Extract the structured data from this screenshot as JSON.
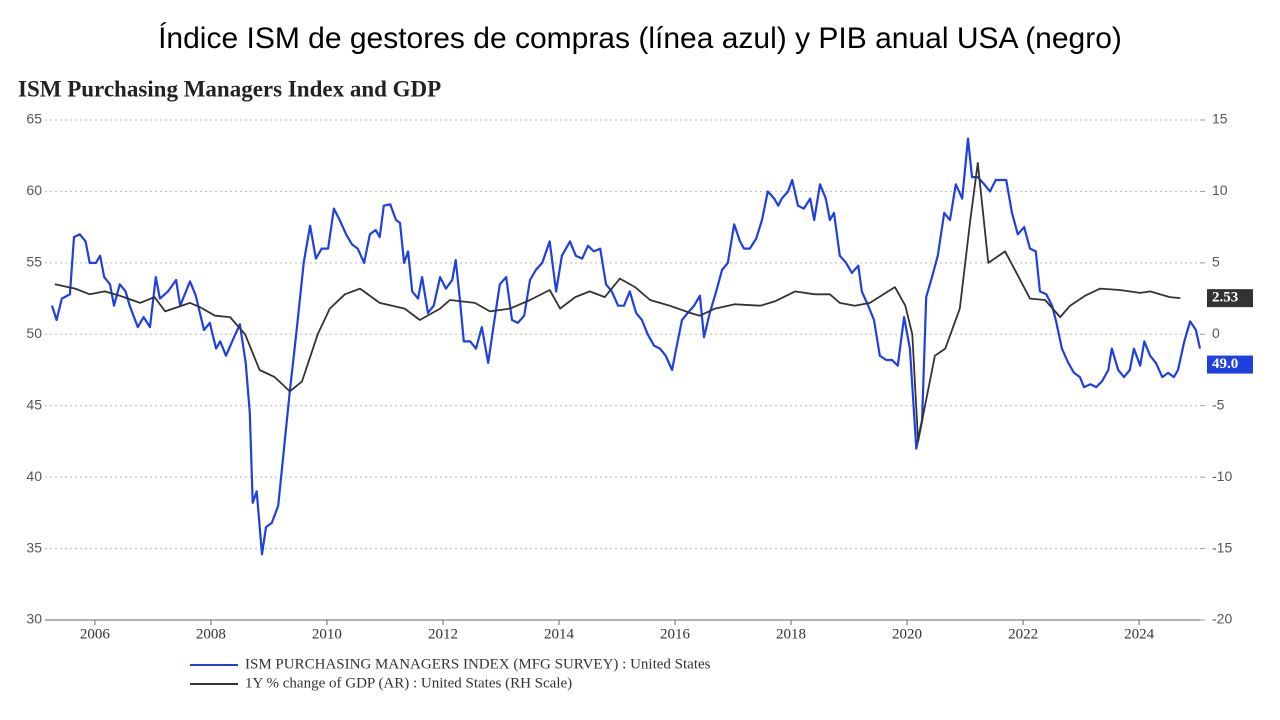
{
  "heading": "Índice ISM de gestores de compras (línea azul) y PIB anual USA (negro)",
  "chart_data": {
    "type": "line",
    "title": "ISM Purchasing Managers Index and GDP",
    "xlim": [
      2005.14,
      2025.05
    ],
    "xticks": [
      2006,
      2008,
      2010,
      2012,
      2014,
      2016,
      2018,
      2020,
      2022,
      2024
    ],
    "ylim": [
      30,
      65
    ],
    "yticks": [
      30,
      35,
      40,
      45,
      50,
      55,
      60,
      65
    ],
    "y2lim": [
      -20,
      15
    ],
    "y2ticks": [
      -20,
      -15,
      -10,
      -5,
      0,
      5,
      10,
      15
    ],
    "grid": true,
    "legend": "bottom",
    "series": [
      {
        "name": "ISM PURCHASING MANAGERS INDEX (MFG SURVEY) : United States",
        "color": "#1f3fe0",
        "last_label": "49.0",
        "x": [
          2005.26,
          2005.34,
          2005.43,
          2005.57,
          2005.64,
          2005.74,
          2005.84,
          2005.91,
          2006.02,
          2006.09,
          2006.16,
          2006.26,
          2006.33,
          2006.43,
          2006.53,
          2006.6,
          2006.74,
          2006.84,
          2006.95,
          2007.05,
          2007.12,
          2007.26,
          2007.4,
          2007.47,
          2007.64,
          2007.74,
          2007.88,
          2007.98,
          2008.09,
          2008.16,
          2008.26,
          2008.4,
          2008.5,
          2008.6,
          2008.67,
          2008.72,
          2008.79,
          2008.88,
          2008.95,
          2009.05,
          2009.16,
          2009.26,
          2009.36,
          2009.47,
          2009.6,
          2009.71,
          2009.81,
          2009.91,
          2010.02,
          2010.12,
          2010.22,
          2010.33,
          2010.43,
          2010.53,
          2010.64,
          2010.74,
          2010.84,
          2010.91,
          2010.98,
          2011.09,
          2011.19,
          2011.26,
          2011.33,
          2011.4,
          2011.47,
          2011.57,
          2011.64,
          2011.74,
          2011.84,
          2011.95,
          2012.05,
          2012.16,
          2012.22,
          2012.29,
          2012.36,
          2012.47,
          2012.57,
          2012.67,
          2012.78,
          2012.88,
          2012.98,
          2013.09,
          2013.19,
          2013.29,
          2013.4,
          2013.5,
          2013.6,
          2013.71,
          2013.84,
          2013.95,
          2014.05,
          2014.19,
          2014.29,
          2014.4,
          2014.5,
          2014.6,
          2014.71,
          2014.81,
          2014.91,
          2015.02,
          2015.12,
          2015.22,
          2015.33,
          2015.43,
          2015.53,
          2015.64,
          2015.74,
          2015.84,
          2015.95,
          2016.02,
          2016.12,
          2016.22,
          2016.33,
          2016.43,
          2016.5,
          2016.6,
          2016.71,
          2016.81,
          2016.91,
          2017.02,
          2017.12,
          2017.19,
          2017.29,
          2017.4,
          2017.5,
          2017.6,
          2017.71,
          2017.78,
          2017.84,
          2017.95,
          2018.02,
          2018.12,
          2018.22,
          2018.33,
          2018.4,
          2018.5,
          2018.6,
          2018.67,
          2018.74,
          2018.84,
          2018.95,
          2019.05,
          2019.16,
          2019.22,
          2019.33,
          2019.43,
          2019.53,
          2019.64,
          2019.74,
          2019.84,
          2019.95,
          2020.05,
          2020.16,
          2020.26,
          2020.33,
          2020.43,
          2020.53,
          2020.64,
          2020.74,
          2020.84,
          2020.95,
          2021.05,
          2021.12,
          2021.22,
          2021.33,
          2021.43,
          2021.53,
          2021.71,
          2021.81,
          2021.91,
          2022.02,
          2022.12,
          2022.22,
          2022.29,
          2022.4,
          2022.5,
          2022.57,
          2022.67,
          2022.78,
          2022.88,
          2022.98,
          2023.05,
          2023.16,
          2023.26,
          2023.36,
          2023.47,
          2023.53,
          2023.64,
          2023.74,
          2023.84,
          2023.91,
          2024.02,
          2024.09,
          2024.19,
          2024.29,
          2024.4,
          2024.5,
          2024.6,
          2024.67,
          2024.78,
          2024.88,
          2024.98,
          2025.05
        ],
        "values": [
          52,
          51,
          52.5,
          52.8,
          56.8,
          57,
          56.5,
          55,
          55,
          55.5,
          54,
          53.5,
          52,
          53.5,
          53,
          52,
          50.5,
          51.2,
          50.5,
          54,
          52.5,
          53,
          53.8,
          52,
          53.7,
          52.7,
          50.3,
          50.8,
          49,
          49.5,
          48.5,
          49.8,
          50.7,
          48,
          44.5,
          38.2,
          39,
          34.6,
          36.5,
          36.8,
          38,
          42,
          46,
          50,
          55,
          57.6,
          55.3,
          56,
          56,
          58.8,
          58,
          57,
          56.3,
          56,
          55,
          57,
          57.3,
          56.8,
          59,
          59.1,
          58,
          57.8,
          55,
          55.8,
          53,
          52.5,
          54,
          51.5,
          52,
          54,
          53.2,
          53.8,
          55.2,
          52.5,
          49.5,
          49.5,
          49,
          50.5,
          48,
          50.8,
          53.5,
          54,
          51,
          50.8,
          51.3,
          53.8,
          54.5,
          55,
          56.5,
          53,
          55.5,
          56.5,
          55.5,
          55.3,
          56.2,
          55.8,
          56,
          53.5,
          53,
          52,
          52,
          53,
          51.5,
          51,
          50,
          49.2,
          49,
          48.5,
          47.5,
          49,
          51,
          51.5,
          52,
          52.7,
          49.8,
          51.5,
          53,
          54.5,
          55,
          57.7,
          56.5,
          56,
          56,
          56.7,
          58,
          60,
          59.5,
          59,
          59.5,
          60,
          60.8,
          59,
          58.8,
          59.5,
          58,
          60.5,
          59.5,
          58,
          58.5,
          55.5,
          55,
          54.3,
          54.8,
          53,
          52,
          51,
          48.5,
          48.2,
          48.2,
          47.8,
          51.2,
          49,
          42,
          44,
          52.6,
          54,
          55.5,
          58.5,
          58,
          60.5,
          59.5,
          63.7,
          61,
          61,
          60.5,
          60,
          60.8,
          60.8,
          58.5,
          57,
          57.5,
          56,
          55.8,
          53,
          52.8,
          52,
          50.9,
          49,
          48,
          47.3,
          47,
          46.3,
          46.5,
          46.3,
          46.7,
          47.5,
          49,
          47.5,
          47,
          47.5,
          49,
          47.8,
          49.5,
          48.5,
          48,
          47,
          47.3,
          47,
          47.5,
          49.5,
          50.9,
          50.3,
          49
        ]
      },
      {
        "name": "1Y % change of GDP (AR) : United States (RH Scale)",
        "color": "#333333",
        "axis": "y2",
        "last_label": "2.53",
        "x": [
          2005.31,
          2005.66,
          2005.91,
          2006.17,
          2006.43,
          2006.78,
          2007.03,
          2007.21,
          2007.64,
          2007.81,
          2008.07,
          2008.33,
          2008.59,
          2008.84,
          2009.1,
          2009.36,
          2009.57,
          2009.84,
          2010.05,
          2010.31,
          2010.57,
          2010.91,
          2011.34,
          2011.6,
          2011.95,
          2012.12,
          2012.55,
          2012.81,
          2013.16,
          2013.5,
          2013.84,
          2014.02,
          2014.28,
          2014.53,
          2014.79,
          2015.05,
          2015.31,
          2015.57,
          2015.91,
          2016.26,
          2016.43,
          2016.69,
          2017.03,
          2017.47,
          2017.72,
          2018.07,
          2018.41,
          2018.67,
          2018.84,
          2019.1,
          2019.36,
          2019.79,
          2019.97,
          2020.09,
          2020.19,
          2020.31,
          2020.48,
          2020.66,
          2020.91,
          2021.09,
          2021.22,
          2021.4,
          2021.69,
          2022.12,
          2022.38,
          2022.64,
          2022.81,
          2023.07,
          2023.33,
          2023.67,
          2024.02,
          2024.19,
          2024.53,
          2024.71
        ],
        "values": [
          3.5,
          3.2,
          2.8,
          3.0,
          2.7,
          2.2,
          2.6,
          1.6,
          2.2,
          1.9,
          1.3,
          1.2,
          0.0,
          -2.5,
          -3.0,
          -4.0,
          -3.3,
          0.0,
          1.8,
          2.8,
          3.2,
          2.2,
          1.8,
          1.0,
          1.8,
          2.4,
          2.2,
          1.6,
          1.8,
          2.4,
          3.1,
          1.8,
          2.6,
          3.0,
          2.6,
          3.9,
          3.3,
          2.4,
          2.0,
          1.5,
          1.3,
          1.8,
          2.1,
          2.0,
          2.3,
          3.0,
          2.8,
          2.8,
          2.2,
          2.0,
          2.2,
          3.3,
          2.0,
          0.0,
          -7.5,
          -5.0,
          -1.5,
          -1.0,
          1.8,
          8.0,
          12.0,
          5.0,
          5.8,
          2.5,
          2.4,
          1.2,
          2.0,
          2.7,
          3.2,
          3.1,
          2.9,
          3.0,
          2.6,
          2.53
        ]
      }
    ]
  }
}
